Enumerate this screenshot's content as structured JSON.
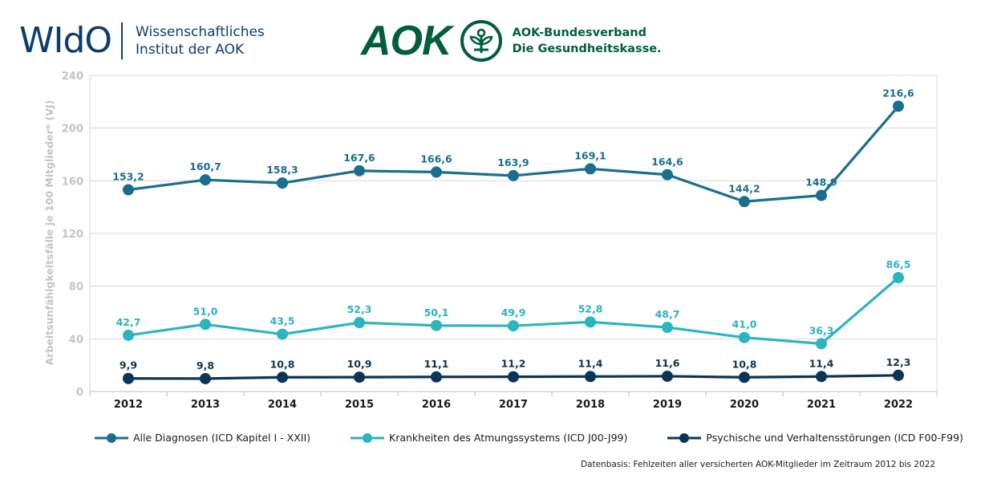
{
  "header": {
    "wido_logo": "WIdO",
    "wido_line1": "Wissenschaftliches",
    "wido_line2": "Institut der AOK",
    "aok_logo": "AOK",
    "aok_line1": "AOK-Bundesverband",
    "aok_line2": "Die Gesundheitskasse."
  },
  "chart_data": {
    "type": "line",
    "title": "",
    "xlabel": "",
    "ylabel": "Arbeitsunfähigkeitsfälle je 100 Mitglieder* (VJ)",
    "ylim": [
      0,
      240
    ],
    "yticks": [
      0,
      40,
      80,
      120,
      160,
      200,
      240
    ],
    "grid": true,
    "legend_position": "bottom",
    "categories": [
      "2012",
      "2013",
      "2014",
      "2015",
      "2016",
      "2017",
      "2018",
      "2019",
      "2020",
      "2021",
      "2022"
    ],
    "series": [
      {
        "name": "Alle Diagnosen (ICD Kapitel I - XXII)",
        "color": "#1a6f8e",
        "values": [
          153.2,
          160.7,
          158.3,
          167.6,
          166.6,
          163.9,
          169.1,
          164.6,
          144.2,
          148.9,
          216.6
        ],
        "labels": [
          "153,2",
          "160,7",
          "158,3",
          "167,6",
          "166,6",
          "163,9",
          "169,1",
          "164,6",
          "144,2",
          "148,9",
          "216,6"
        ]
      },
      {
        "name": "Krankheiten des Atmungssystems (ICD J00-J99)",
        "color": "#2bb5bf",
        "values": [
          42.7,
          51.0,
          43.5,
          52.3,
          50.1,
          49.9,
          52.8,
          48.7,
          41.0,
          36.3,
          86.5
        ],
        "labels": [
          "42,7",
          "51,0",
          "43,5",
          "52,3",
          "50,1",
          "49,9",
          "52,8",
          "48,7",
          "41,0",
          "36,3",
          "86,5"
        ]
      },
      {
        "name": "Psychische und Verhaltensstörungen (ICD F00-F99)",
        "color": "#0b3556",
        "values": [
          9.9,
          9.8,
          10.8,
          10.9,
          11.1,
          11.2,
          11.4,
          11.6,
          10.8,
          11.4,
          12.3
        ],
        "labels": [
          "9,9",
          "9,8",
          "10,8",
          "10,9",
          "11,1",
          "11,2",
          "11,4",
          "11,6",
          "10,8",
          "11,4",
          "12,3"
        ]
      }
    ]
  },
  "footnote": "Datenbasis: Fehlzeiten aller versicherten AOK-Mitglieder im Zeitraum 2012 bis 2022"
}
